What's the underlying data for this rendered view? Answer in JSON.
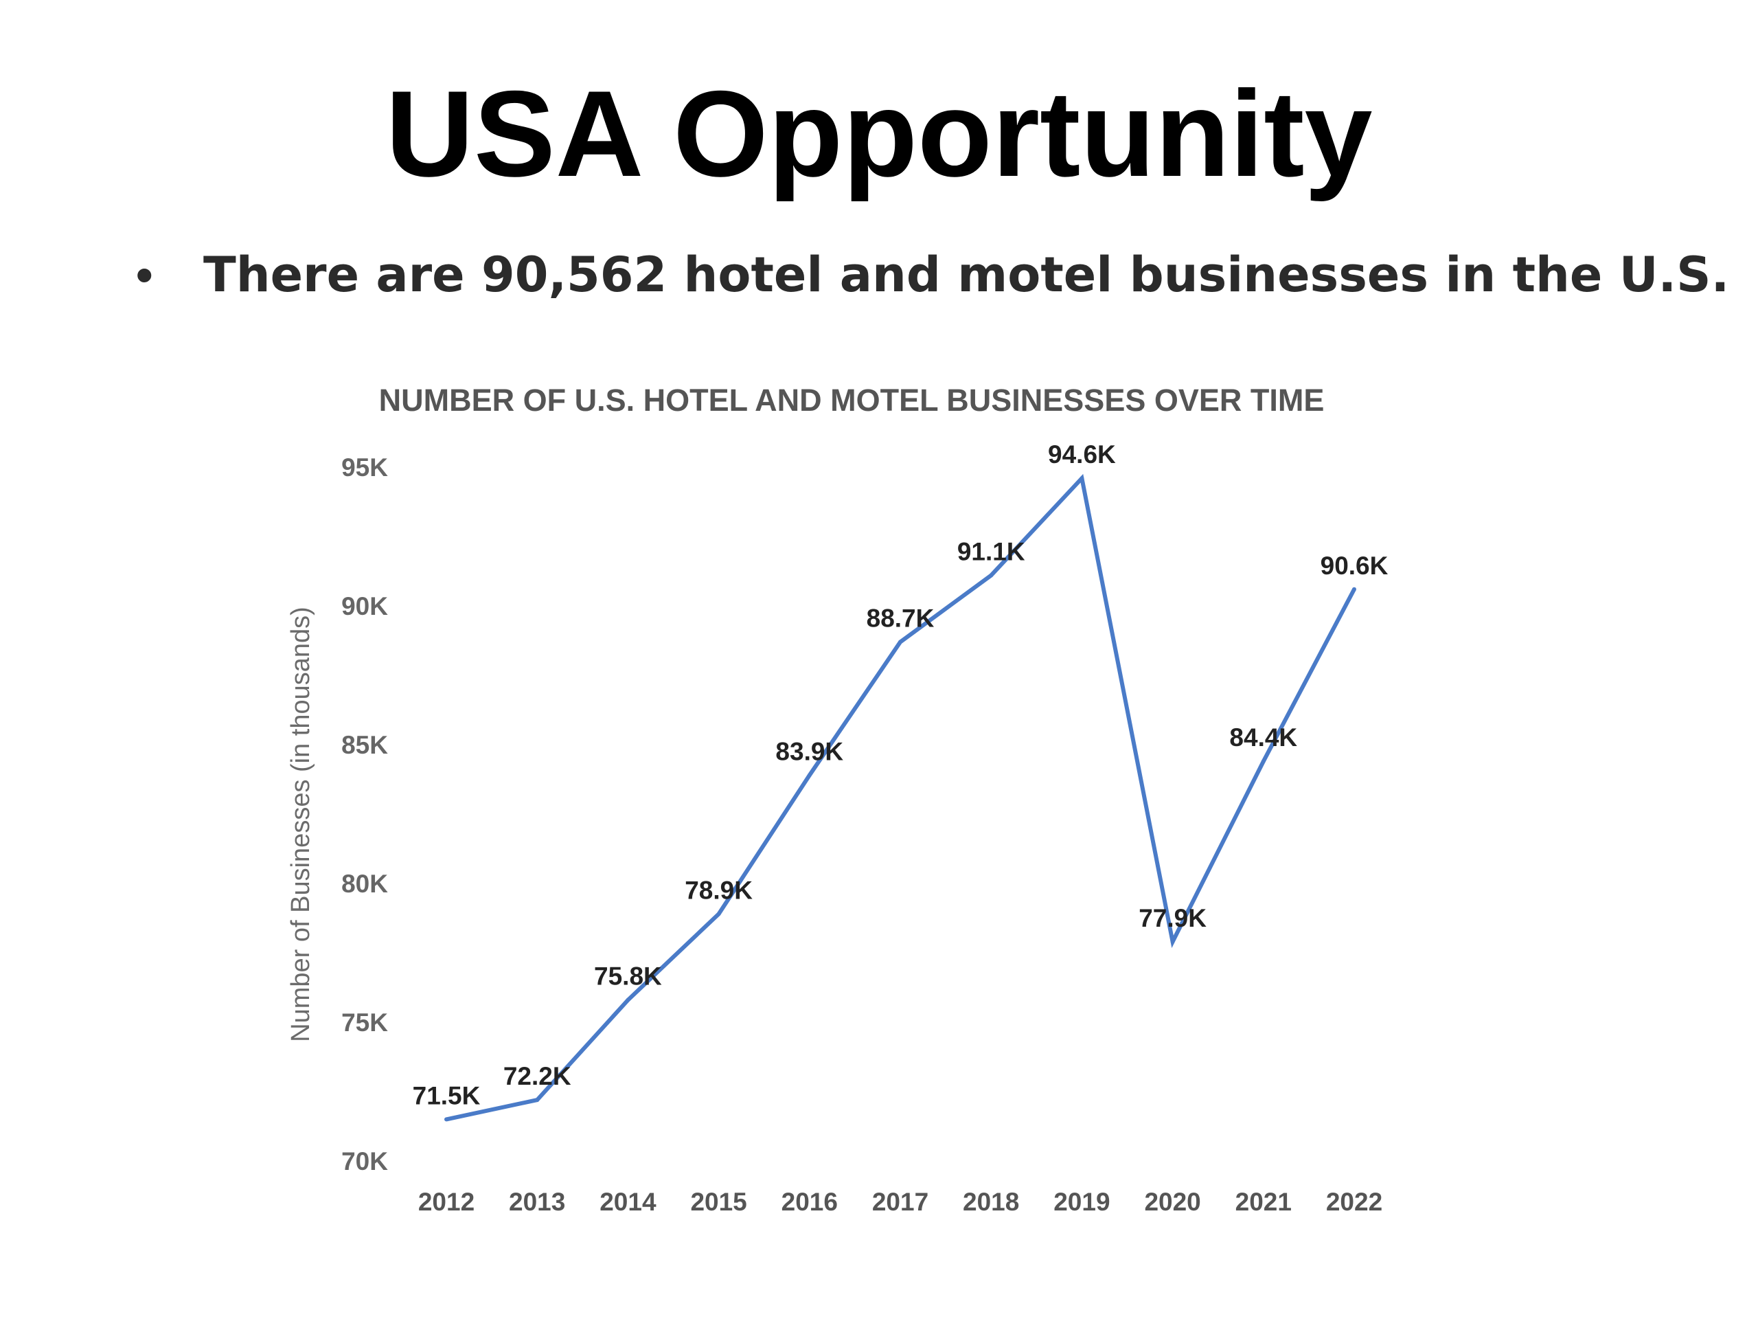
{
  "slide": {
    "title": "USA Opportunity",
    "bullet_symbol": "•",
    "bullet_text": "There are 90,562 hotel and motel businesses in the U.S."
  },
  "chart_data": {
    "type": "line",
    "title": "NUMBER OF U.S. HOTEL AND MOTEL BUSINESSES OVER TIME",
    "xlabel": "",
    "ylabel": "Number of Businesses (in thousands)",
    "x": [
      "2012",
      "2013",
      "2014",
      "2015",
      "2016",
      "2017",
      "2018",
      "2019",
      "2020",
      "2021",
      "2022"
    ],
    "series": [
      {
        "values": [
          71.5,
          72.2,
          75.8,
          78.9,
          83.9,
          88.7,
          91.1,
          94.6,
          77.9,
          84.4,
          90.6
        ],
        "data_labels": [
          "71.5K",
          "72.2K",
          "75.8K",
          "78.9K",
          "83.9K",
          "88.7K",
          "91.1K",
          "94.6K",
          "77.9K",
          "84.4K",
          "90.6K"
        ]
      }
    ],
    "ylim": [
      70,
      95
    ],
    "yticks": [
      95,
      90,
      85,
      80,
      75,
      70
    ],
    "ytick_labels": [
      "95K",
      "90K",
      "85K",
      "80K",
      "75K",
      "70K"
    ],
    "grid": false,
    "legend": "none",
    "line_color": "#4a7bc8"
  }
}
